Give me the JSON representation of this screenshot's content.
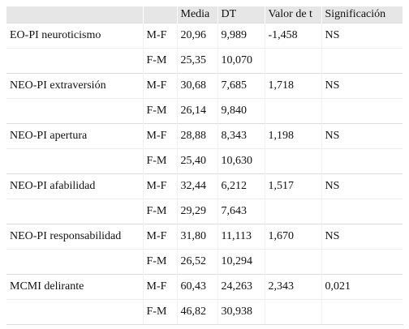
{
  "table": {
    "headers": [
      "",
      "",
      "Media",
      "DT",
      "Valor de t",
      "Significación"
    ],
    "rows": [
      {
        "label": "EO-PI neuroticismo",
        "sex": "M-F",
        "media": "20,96",
        "dt": "9,989",
        "t": "-1,458",
        "sig": "NS"
      },
      {
        "label": "",
        "sex": "F-M",
        "media": "25,35",
        "dt": "10,070",
        "t": "",
        "sig": ""
      },
      {
        "label": "NEO-PI extraversión",
        "sex": "M-F",
        "media": "30,68",
        "dt": "7,685",
        "t": "1,718",
        "sig": "NS"
      },
      {
        "label": "",
        "sex": "F-M",
        "media": "26,14",
        "dt": "9,840",
        "t": "",
        "sig": ""
      },
      {
        "label": "NEO-PI apertura",
        "sex": "M-F",
        "media": "28,88",
        "dt": "8,343",
        "t": "1,198",
        "sig": "NS"
      },
      {
        "label": "",
        "sex": "F-M",
        "media": "25,40",
        "dt": "10,630",
        "t": "",
        "sig": ""
      },
      {
        "label": "NEO-PI afabilidad",
        "sex": "M-F",
        "media": "32,44",
        "dt": "6,212",
        "t": "1,517",
        "sig": "NS"
      },
      {
        "label": "",
        "sex": "F-M",
        "media": "29,29",
        "dt": "7,643",
        "t": "",
        "sig": ""
      },
      {
        "label": "NEO-PI responsabilidad",
        "sex": "M-F",
        "media": "31,80",
        "dt": "11,113",
        "t": "1,670",
        "sig": "NS"
      },
      {
        "label": "",
        "sex": "F-M",
        "media": "26,52",
        "dt": "10,294",
        "t": "",
        "sig": ""
      },
      {
        "label": "MCMI delirante",
        "sex": "M-F",
        "media": "60,43",
        "dt": "24,263",
        "t": "2,343",
        "sig": "0,021"
      },
      {
        "label": "",
        "sex": "F-M",
        "media": "46,82",
        "dt": "30,938",
        "t": "",
        "sig": ""
      }
    ]
  }
}
